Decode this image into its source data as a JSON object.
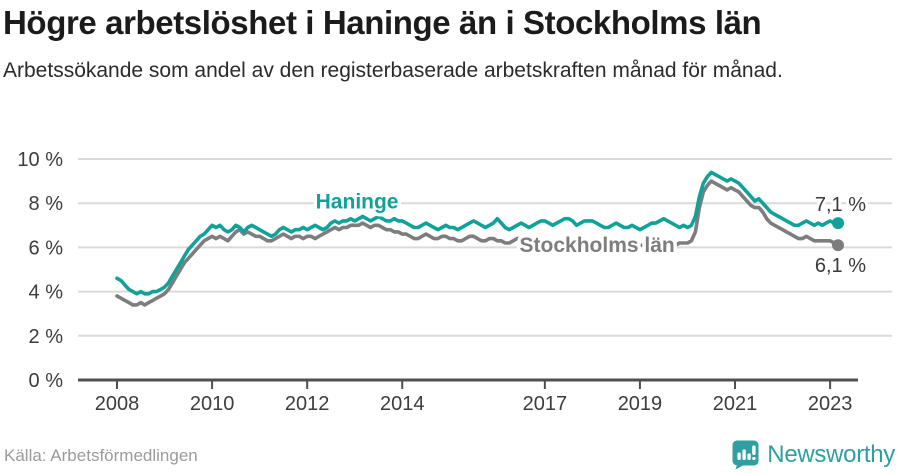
{
  "header": {
    "title": "Högre arbetslöshet i Haninge än i Stockholms län",
    "subtitle": "Arbetssökande som andel av den registerbaserade arbetskraften månad för månad."
  },
  "colors": {
    "haninge": "#10a29a",
    "stockholm": "#7d7d80",
    "grid": "#dadada",
    "axis": "#4f4f4f",
    "axis_text": "#3d3d3d",
    "annotation_text": "#3a3a3a",
    "brand_teal": "#2f9fa3"
  },
  "chart_data": {
    "type": "line",
    "title": "Högre arbetslöshet i Haninge än i Stockholms län",
    "subtitle": "Arbetssökande som andel av den registerbaserade arbetskraften månad för månad.",
    "x_unit": "year-month",
    "x_start": 2008.0,
    "x_step": 0.0833333,
    "xlim": [
      2007.9,
      2023.7
    ],
    "ylim": [
      0,
      10
    ],
    "grid": true,
    "y_ticks": [
      {
        "value": 0,
        "label": "0 %"
      },
      {
        "value": 2,
        "label": "2 %"
      },
      {
        "value": 4,
        "label": "4 %"
      },
      {
        "value": 6,
        "label": "6 %"
      },
      {
        "value": 8,
        "label": "8 %"
      },
      {
        "value": 10,
        "label": "10 %"
      }
    ],
    "x_ticks": [
      {
        "value": 2008,
        "label": "2008"
      },
      {
        "value": 2010,
        "label": "2010"
      },
      {
        "value": 2012,
        "label": "2012"
      },
      {
        "value": 2014,
        "label": "2014"
      },
      {
        "value": 2017,
        "label": "2017"
      },
      {
        "value": 2019,
        "label": "2019"
      },
      {
        "value": 2021,
        "label": "2021"
      },
      {
        "value": 2023,
        "label": "2023"
      }
    ],
    "series": [
      {
        "name": "Stockholms län",
        "color": "#7d7d80",
        "end_label": "6,1 %",
        "inline_label": {
          "text": "Stockholms län",
          "x": 2018.1,
          "y": 5.8
        },
        "values": [
          3.8,
          3.7,
          3.6,
          3.5,
          3.4,
          3.4,
          3.5,
          3.4,
          3.5,
          3.6,
          3.7,
          3.8,
          3.9,
          4.1,
          4.4,
          4.7,
          5.0,
          5.3,
          5.5,
          5.7,
          5.9,
          6.1,
          6.3,
          6.4,
          6.5,
          6.4,
          6.5,
          6.4,
          6.3,
          6.5,
          6.7,
          6.8,
          6.6,
          6.7,
          6.6,
          6.5,
          6.5,
          6.4,
          6.3,
          6.3,
          6.4,
          6.5,
          6.6,
          6.5,
          6.4,
          6.5,
          6.5,
          6.4,
          6.5,
          6.5,
          6.4,
          6.5,
          6.6,
          6.7,
          6.8,
          6.9,
          6.8,
          6.9,
          6.9,
          7.0,
          7.0,
          7.0,
          7.1,
          7.0,
          6.9,
          7.0,
          7.0,
          6.9,
          6.8,
          6.8,
          6.7,
          6.7,
          6.6,
          6.6,
          6.5,
          6.4,
          6.4,
          6.5,
          6.6,
          6.5,
          6.4,
          6.4,
          6.5,
          6.5,
          6.4,
          6.4,
          6.3,
          6.3,
          6.4,
          6.5,
          6.5,
          6.4,
          6.3,
          6.3,
          6.4,
          6.4,
          6.3,
          6.3,
          6.2,
          6.2,
          6.3,
          6.4,
          6.4,
          6.3,
          6.2,
          6.2,
          6.3,
          6.3,
          6.3,
          6.2,
          6.2,
          6.1,
          6.2,
          6.3,
          6.3,
          6.2,
          6.1,
          6.1,
          6.2,
          6.2,
          6.2,
          6.1,
          6.0,
          6.0,
          6.1,
          6.2,
          6.2,
          6.1,
          6.0,
          6.0,
          6.1,
          6.1,
          6.1,
          6.1,
          6.0,
          6.1,
          6.2,
          6.2,
          6.3,
          6.2,
          6.1,
          6.1,
          6.2,
          6.2,
          6.2,
          6.3,
          6.7,
          7.8,
          8.5,
          8.8,
          9.0,
          8.9,
          8.8,
          8.7,
          8.6,
          8.7,
          8.6,
          8.5,
          8.3,
          8.1,
          7.9,
          7.8,
          7.8,
          7.6,
          7.3,
          7.1,
          7.0,
          6.9,
          6.8,
          6.7,
          6.6,
          6.5,
          6.4,
          6.4,
          6.5,
          6.4,
          6.3,
          6.3,
          6.3,
          6.3,
          6.3,
          6.2,
          6.1
        ]
      },
      {
        "name": "Haninge",
        "color": "#10a29a",
        "end_label": "7,1 %",
        "inline_label": {
          "text": "Haninge",
          "x": 2013.05,
          "y": 7.75
        },
        "values": [
          4.6,
          4.5,
          4.3,
          4.1,
          4.0,
          3.9,
          4.0,
          3.9,
          3.9,
          4.0,
          4.0,
          4.1,
          4.2,
          4.4,
          4.7,
          5.0,
          5.3,
          5.6,
          5.9,
          6.1,
          6.3,
          6.5,
          6.6,
          6.8,
          7.0,
          6.9,
          7.0,
          6.8,
          6.7,
          6.8,
          7.0,
          6.9,
          6.7,
          6.9,
          7.0,
          6.9,
          6.8,
          6.7,
          6.6,
          6.5,
          6.6,
          6.8,
          6.9,
          6.8,
          6.7,
          6.8,
          6.8,
          6.9,
          6.8,
          6.9,
          7.0,
          6.9,
          6.8,
          6.9,
          7.1,
          7.2,
          7.1,
          7.2,
          7.2,
          7.3,
          7.2,
          7.3,
          7.4,
          7.3,
          7.2,
          7.3,
          7.4,
          7.3,
          7.2,
          7.2,
          7.3,
          7.2,
          7.2,
          7.1,
          7.0,
          6.9,
          6.9,
          7.0,
          7.1,
          7.0,
          6.9,
          6.8,
          6.9,
          7.0,
          6.9,
          6.9,
          6.8,
          6.9,
          7.0,
          7.1,
          7.2,
          7.1,
          7.0,
          6.9,
          7.0,
          7.1,
          7.3,
          7.1,
          6.9,
          6.8,
          6.9,
          7.0,
          7.1,
          7.0,
          6.9,
          7.0,
          7.1,
          7.2,
          7.2,
          7.1,
          7.0,
          7.1,
          7.2,
          7.3,
          7.3,
          7.2,
          7.0,
          7.1,
          7.2,
          7.2,
          7.2,
          7.1,
          7.0,
          6.9,
          6.9,
          7.0,
          7.1,
          7.0,
          6.9,
          6.9,
          7.0,
          6.9,
          6.8,
          6.9,
          7.0,
          7.1,
          7.1,
          7.2,
          7.3,
          7.2,
          7.1,
          7.0,
          6.9,
          7.0,
          6.9,
          7.0,
          7.4,
          8.3,
          8.9,
          9.2,
          9.4,
          9.3,
          9.2,
          9.1,
          9.0,
          9.1,
          9.0,
          8.9,
          8.7,
          8.5,
          8.3,
          8.1,
          8.2,
          8.0,
          7.8,
          7.6,
          7.5,
          7.4,
          7.3,
          7.2,
          7.1,
          7.0,
          7.0,
          7.1,
          7.2,
          7.1,
          7.0,
          7.1,
          7.0,
          7.1,
          7.2,
          7.1,
          7.1
        ]
      }
    ],
    "legend_position": "inline-labels"
  },
  "footer": {
    "source": "Källa: Arbetsförmedlingen",
    "brand": "Newsworthy"
  }
}
